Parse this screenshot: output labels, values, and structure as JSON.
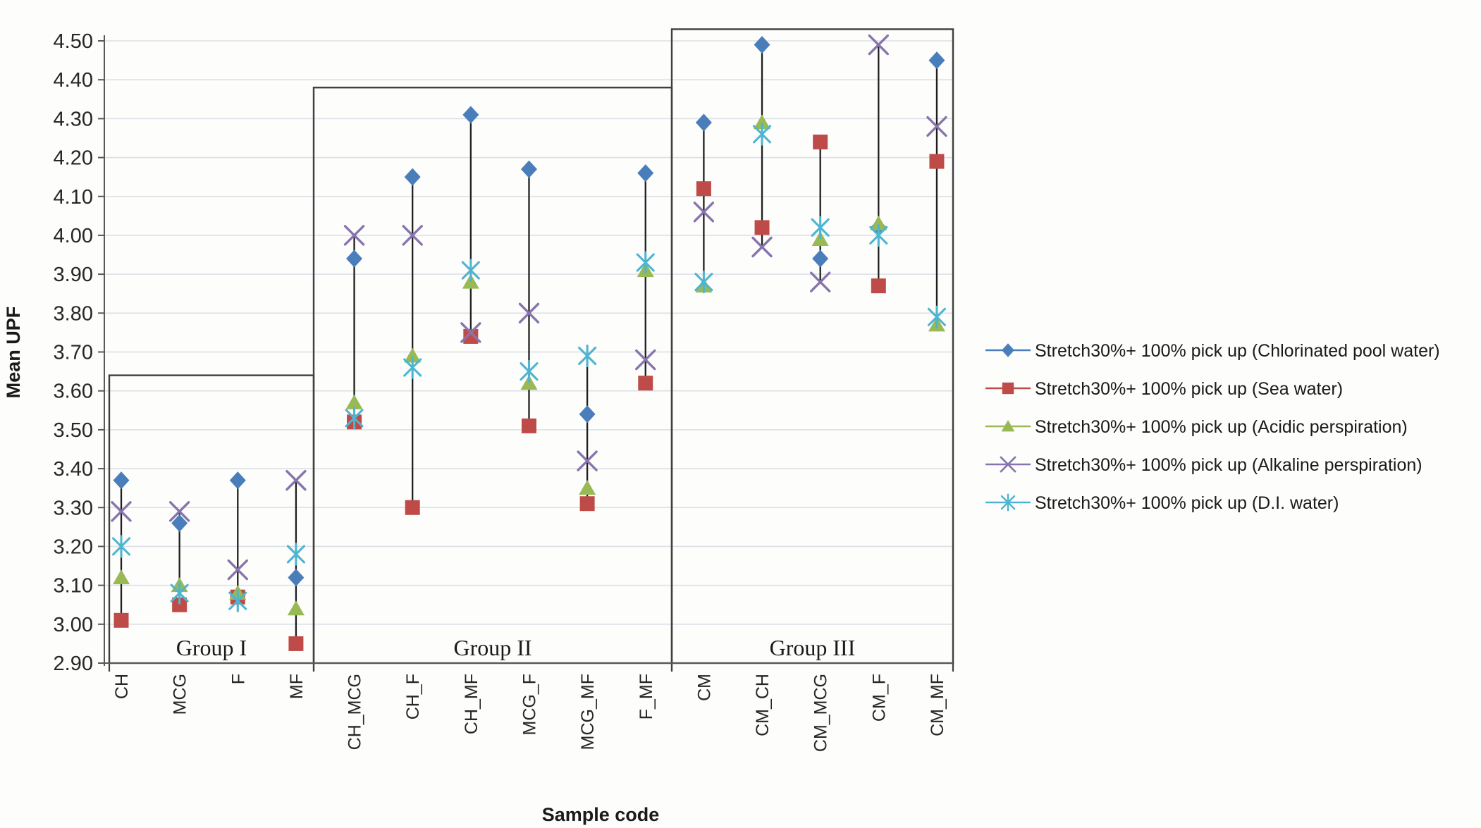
{
  "chart_data": {
    "type": "scatter",
    "title": "",
    "xlabel": "Sample code",
    "ylabel": "Mean UPF",
    "ylim": [
      2.9,
      4.5
    ],
    "ytick_step": 0.1,
    "ytick_labels": [
      "2.90",
      "3.00",
      "3.10",
      "3.20",
      "3.30",
      "3.40",
      "3.50",
      "3.60",
      "3.70",
      "3.80",
      "3.90",
      "4.00",
      "4.10",
      "4.20",
      "4.30",
      "4.40",
      "4.50"
    ],
    "grid": true,
    "high_low_lines": true,
    "legend_position": "right",
    "categories": [
      "CH",
      "MCG",
      "F",
      "MF",
      "CH_MCG",
      "CH_F",
      "CH_MF",
      "MCG_F",
      "MCG_MF",
      "F_MF",
      "CM",
      "CM_CH",
      "CM_MCG",
      "CM_F",
      "CM_MF"
    ],
    "groups": [
      {
        "label": "Group I",
        "from": 0,
        "to": 3,
        "box_top_value": 3.64
      },
      {
        "label": "Group II",
        "from": 4,
        "to": 9,
        "box_top_value": 4.38
      },
      {
        "label": "Group III",
        "from": 10,
        "to": 14,
        "box_top_value": 4.53
      }
    ],
    "series": [
      {
        "name": "Stretch30%+ 100% pick up (Chlorinated pool water)",
        "marker": "diamond",
        "color": "#4A7EBB",
        "values": [
          3.37,
          3.26,
          3.37,
          3.12,
          3.94,
          4.15,
          4.31,
          4.17,
          3.54,
          4.16,
          4.29,
          4.49,
          3.94,
          4.02,
          4.45
        ]
      },
      {
        "name": "Stretch30%+ 100% pick up (Sea water)",
        "marker": "square",
        "color": "#BE4B48",
        "values": [
          3.01,
          3.05,
          3.07,
          2.95,
          3.52,
          3.3,
          3.74,
          3.51,
          3.31,
          3.62,
          4.12,
          4.02,
          4.24,
          3.87,
          4.19
        ]
      },
      {
        "name": "Stretch30%+ 100% pick up (Acidic perspiration)",
        "marker": "triangle",
        "color": "#98B954",
        "values": [
          3.12,
          3.1,
          3.08,
          3.04,
          3.57,
          3.69,
          3.88,
          3.62,
          3.35,
          3.91,
          3.87,
          4.29,
          3.99,
          4.03,
          3.77
        ]
      },
      {
        "name": "Stretch30%+ 100% pick up (Alkaline perspiration)",
        "marker": "x",
        "color": "#8874AC",
        "values": [
          3.29,
          3.29,
          3.14,
          3.37,
          4.0,
          4.0,
          3.75,
          3.8,
          3.42,
          3.68,
          4.06,
          3.97,
          3.88,
          4.49,
          4.28
        ]
      },
      {
        "name": "Stretch30%+ 100% pick up (D.I. water)",
        "marker": "asterisk",
        "color": "#4FB4D0",
        "values": [
          3.2,
          3.08,
          3.06,
          3.18,
          3.53,
          3.66,
          3.91,
          3.65,
          3.69,
          3.93,
          3.88,
          4.26,
          4.02,
          4.0,
          3.79
        ]
      }
    ],
    "colors": {
      "gridline": "#dbe0e5",
      "axis": "#595959",
      "box_border": "#3f3f3f",
      "hilo_line": "#1f1f1f",
      "text": "#262626"
    }
  }
}
